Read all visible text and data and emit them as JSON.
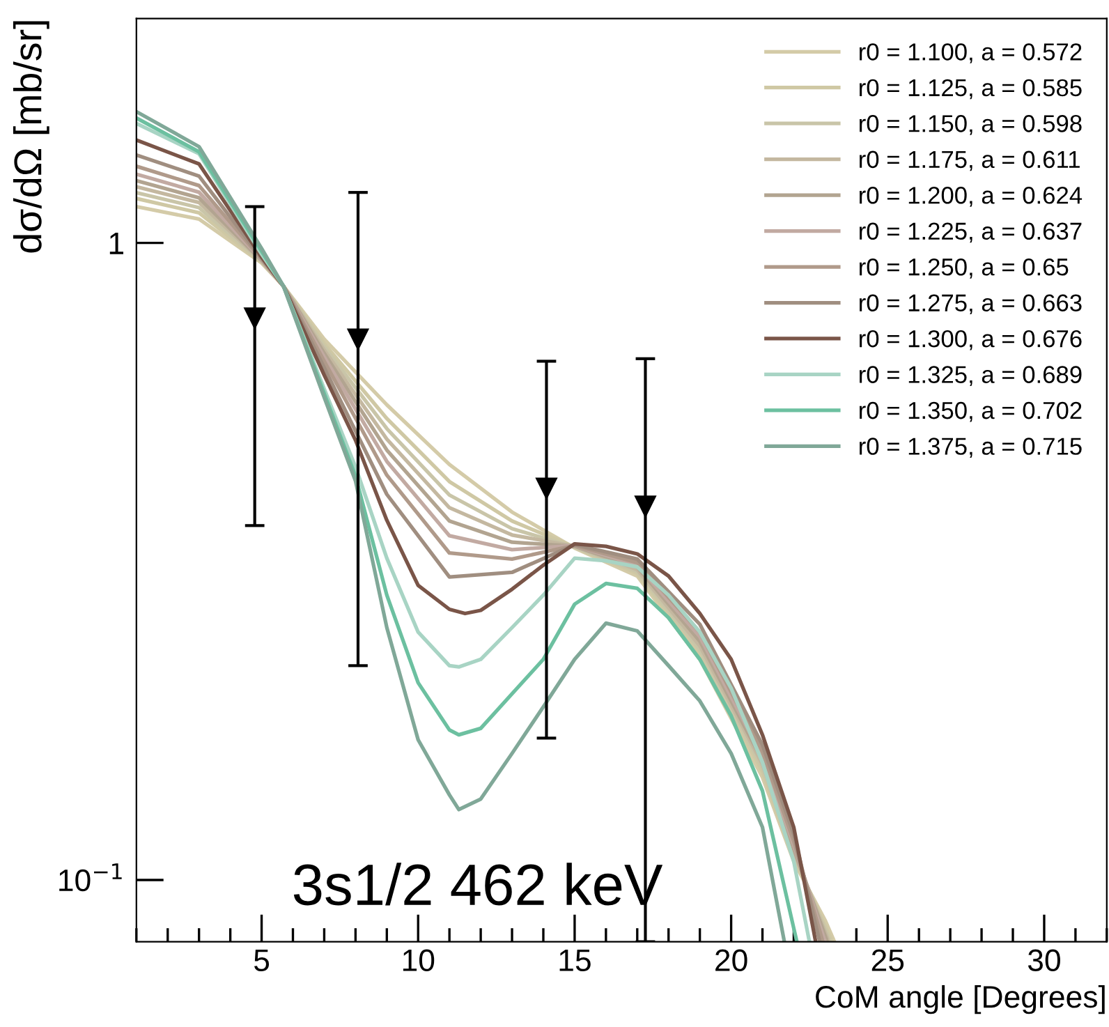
{
  "chart_data": {
    "type": "line",
    "xlabel": "CoM angle [Degrees]",
    "ylabel": "dσ/dΩ [mb/sr]",
    "log": "y",
    "xlim": [
      1,
      32
    ],
    "xticks": [
      5,
      10,
      15,
      20,
      25,
      30
    ],
    "ylim": [
      0.08,
      2.25
    ],
    "yticks": [
      {
        "value": 0.1,
        "label": "10$^{−1}$"
      },
      1
    ],
    "grid": false,
    "legend": "top right",
    "line_style": "solid",
    "marker": "none",
    "annotations": [
      "3s1/2 462 keV"
    ],
    "series": [
      {
        "name": "r0 = 1.100, a = 0.572",
        "color": "#d4cba8",
        "x": [
          1,
          3,
          5,
          5.7,
          7,
          9,
          11,
          13,
          15,
          17,
          19,
          21,
          22,
          23,
          23.3
        ],
        "values": [
          1.14,
          1.09,
          0.93,
          0.855,
          0.706,
          0.557,
          0.449,
          0.378,
          0.332,
          0.3,
          0.222,
          0.145,
          0.107,
          0.0865,
          0.08
        ]
      },
      {
        "name": "r0 = 1.125, a = 0.585",
        "color": "#cfc8a4",
        "x": [
          1,
          3,
          5,
          5.7,
          7,
          9,
          11,
          13,
          15,
          17,
          19,
          21,
          22,
          23.23
        ],
        "values": [
          1.174,
          1.115,
          0.933,
          0.855,
          0.695,
          0.53,
          0.422,
          0.366,
          0.333,
          0.303,
          0.226,
          0.148,
          0.1085,
          0.08
        ]
      },
      {
        "name": "r0 = 1.150, a = 0.598",
        "color": "#c9c5a8",
        "x": [
          1,
          3,
          5,
          5.7,
          7,
          9,
          11,
          13,
          15,
          17,
          19,
          21,
          22,
          23.17
        ],
        "values": [
          1.199,
          1.136,
          0.935,
          0.855,
          0.687,
          0.511,
          0.402,
          0.356,
          0.333,
          0.305,
          0.23,
          0.15,
          0.11,
          0.08
        ]
      },
      {
        "name": "r0 = 1.175, a = 0.611",
        "color": "#c4b8a0",
        "x": [
          1,
          3,
          5,
          5.7,
          7,
          9,
          11,
          13,
          15,
          17,
          19,
          21,
          22,
          23.12
        ],
        "values": [
          1.225,
          1.157,
          0.937,
          0.855,
          0.679,
          0.492,
          0.384,
          0.348,
          0.334,
          0.307,
          0.233,
          0.152,
          0.111,
          0.08
        ]
      },
      {
        "name": "r0 = 1.200, a = 0.624",
        "color": "#b2a490",
        "x": [
          1,
          3,
          5,
          5.7,
          7,
          9,
          11,
          13,
          15,
          17,
          19,
          21,
          22,
          23.07
        ],
        "values": [
          1.252,
          1.177,
          0.939,
          0.855,
          0.671,
          0.473,
          0.366,
          0.339,
          0.334,
          0.31,
          0.237,
          0.154,
          0.112,
          0.08
        ]
      },
      {
        "name": "r0 = 1.225, a = 0.637",
        "color": "#c2aaa2",
        "x": [
          1,
          3,
          5,
          5.7,
          7,
          9,
          11,
          13,
          15,
          17,
          19,
          21,
          22,
          23.0
        ],
        "values": [
          1.282,
          1.201,
          0.941,
          0.855,
          0.662,
          0.454,
          0.347,
          0.33,
          0.335,
          0.312,
          0.241,
          0.156,
          0.1136,
          0.08
        ]
      },
      {
        "name": "r0 = 1.250, a = 0.65",
        "color": "#b09a8a",
        "x": [
          1,
          3,
          5,
          5.7,
          7,
          9,
          11,
          13,
          15,
          17,
          19,
          21,
          22,
          22.93
        ],
        "values": [
          1.319,
          1.23,
          0.943,
          0.855,
          0.652,
          0.432,
          0.326,
          0.319,
          0.335,
          0.315,
          0.245,
          0.159,
          0.115,
          0.08
        ]
      },
      {
        "name": "r0 = 1.275, a = 0.663",
        "color": "#a08e80",
        "x": [
          1,
          3,
          5,
          5.7,
          7,
          9,
          11,
          13,
          15,
          17,
          19,
          21,
          22,
          22.83
        ],
        "values": [
          1.374,
          1.273,
          0.946,
          0.855,
          0.637,
          0.403,
          0.299,
          0.304,
          0.336,
          0.319,
          0.252,
          0.163,
          0.118,
          0.08
        ]
      },
      {
        "name": "r0 = 1.300, a = 0.676",
        "color": "#7a5548",
        "x": [
          1,
          3,
          5,
          5.7,
          7,
          8,
          9,
          10,
          11,
          11.5,
          12,
          13,
          14,
          15,
          16,
          17,
          18,
          19,
          20,
          21,
          22,
          22.7
        ],
        "values": [
          1.45,
          1.33,
          0.95,
          0.855,
          0.62,
          0.49,
          0.367,
          0.29,
          0.266,
          0.262,
          0.265,
          0.286,
          0.312,
          0.337,
          0.334,
          0.325,
          0.3,
          0.262,
          0.222,
          0.169,
          0.121,
          0.08
        ]
      },
      {
        "name": "r0 = 1.325, a = 0.689",
        "color": "#a8d4c4",
        "x": [
          1,
          3,
          5,
          5.7,
          7,
          8,
          9,
          10,
          11,
          11.3,
          12,
          13,
          14,
          15,
          16,
          17,
          18,
          19,
          20,
          21,
          22,
          22.5
        ],
        "values": [
          1.54,
          1.38,
          0.96,
          0.855,
          0.59,
          0.445,
          0.32,
          0.245,
          0.217,
          0.216,
          0.222,
          0.249,
          0.28,
          0.32,
          0.317,
          0.31,
          0.28,
          0.245,
          0.2,
          0.153,
          0.107,
          0.08
        ]
      },
      {
        "name": "r0 = 1.350, a = 0.702",
        "color": "#6cc0a0",
        "x": [
          1,
          3,
          5,
          5.7,
          7,
          8,
          9,
          10,
          11,
          11.3,
          12,
          13,
          14,
          15,
          16,
          17,
          18,
          19,
          20,
          21,
          22,
          22.1
        ],
        "values": [
          1.57,
          1.39,
          0.97,
          0.855,
          0.58,
          0.43,
          0.28,
          0.204,
          0.172,
          0.169,
          0.173,
          0.196,
          0.222,
          0.271,
          0.292,
          0.287,
          0.258,
          0.222,
          0.181,
          0.138,
          0.084,
          0.08
        ]
      },
      {
        "name": "r0 = 1.375, a = 0.715",
        "color": "#80a898",
        "x": [
          1,
          3,
          5,
          5.7,
          7,
          8,
          9,
          10,
          11,
          11.3,
          12,
          13,
          14,
          15,
          16,
          17,
          18,
          19,
          20,
          21,
          21.7
        ],
        "values": [
          1.607,
          1.416,
          0.98,
          0.855,
          0.572,
          0.423,
          0.249,
          0.166,
          0.136,
          0.129,
          0.134,
          0.158,
          0.187,
          0.222,
          0.253,
          0.246,
          0.217,
          0.191,
          0.158,
          0.121,
          0.08
        ]
      },
      {
        "type": "scatter",
        "marker": "triangle",
        "color": "#000000",
        "x": [
          4.78,
          8.08,
          14.1,
          17.26
        ],
        "values": [
          0.762,
          0.706,
          0.412,
          0.386
        ],
        "errors": [
          [
            0.36,
            1.14
          ],
          [
            0.217,
            1.2
          ],
          [
            0.167,
            0.652
          ],
          [
            0.08,
            0.658
          ]
        ]
      }
    ]
  }
}
